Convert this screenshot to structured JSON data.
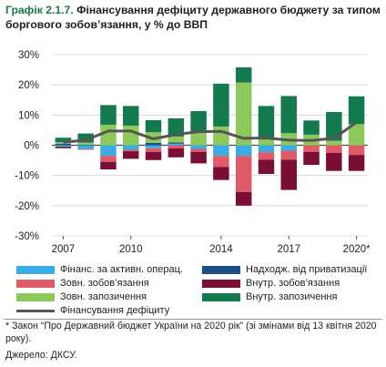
{
  "figure": {
    "prefix": "Графік 2.1.7.",
    "title": "Фінансування дефіциту державного бюджету за типом боргового зобов’язання, у % до ВВП",
    "note": "* Закон “Про Державний бюджет України на 2020 рік” (зі змінами від 13 квітня 2020 року).",
    "source": "Джерело: ДКСУ."
  },
  "colors": {
    "active_ops": "#3aaee4",
    "privatization": "#1c4f86",
    "ext_obligations": "#e05a68",
    "int_obligations": "#7a0f35",
    "ext_borrowing": "#8dc95a",
    "int_borrowing": "#137a4e",
    "deficit_line": "#555555",
    "grid": "#d4d4d4",
    "axis": "#4d4d4d"
  },
  "chart_data": {
    "type": "bar",
    "stacked": true,
    "categories": [
      "2007",
      "2008",
      "2009",
      "2010",
      "2011",
      "2012",
      "2013",
      "2014",
      "2015",
      "2016",
      "2017",
      "2018",
      "2019",
      "2020*"
    ],
    "x_tick_labels": [
      "2007",
      "",
      "",
      "2010",
      "",
      "",
      "",
      "2014",
      "",
      "",
      "2017",
      "",
      "",
      "2020*"
    ],
    "y_ticks": [
      -30,
      -20,
      -10,
      0,
      10,
      20,
      30
    ],
    "y_tick_labels": [
      "-30%",
      "-20%",
      "-10%",
      "0%",
      "10%",
      "20%",
      "30%"
    ],
    "ylim": [
      -30,
      30
    ],
    "grid": true,
    "legend_position": "bottom",
    "series": [
      {
        "name": "Фінанс. за активн. операц.",
        "key": "active_ops",
        "values": [
          -0.5,
          -1.2,
          -3.5,
          -1.5,
          -1.0,
          0.5,
          -1.2,
          -3.5,
          -3.5,
          -2.3,
          -1.8,
          0,
          0,
          0
        ]
      },
      {
        "name": "Надходж. від приватизації",
        "key": "privatization",
        "values": [
          0.5,
          0.2,
          0,
          0,
          0.8,
          0.4,
          0,
          0,
          0,
          0,
          0,
          0,
          0,
          0
        ]
      },
      {
        "name": "Зовн. зобов’язання",
        "key": "ext_obligations",
        "values": [
          0,
          -0.3,
          -2.0,
          -0.5,
          -1.2,
          -1.0,
          -1.0,
          -3.7,
          -12.0,
          -2.5,
          -3.0,
          -2.2,
          -2.5,
          -3.2
        ]
      },
      {
        "name": "Внутр. зобов’язання",
        "key": "int_obligations",
        "values": [
          -0.5,
          0,
          -2.5,
          -2.5,
          -2.7,
          -3.0,
          -3.8,
          -4.3,
          -4.5,
          -4.7,
          -10.0,
          -4.3,
          -6.0,
          -5.3
        ]
      },
      {
        "name": "Зовн. запозичення",
        "key": "ext_borrowing",
        "values": [
          0.5,
          0.7,
          6.8,
          6.5,
          3.5,
          2.0,
          4.3,
          6.2,
          20.8,
          2.5,
          4.0,
          3.5,
          1.5,
          7.0
        ]
      },
      {
        "name": "Внутр. запозичення",
        "key": "int_borrowing",
        "values": [
          1.5,
          3.0,
          6.5,
          6.5,
          4.0,
          6.0,
          7.0,
          14.2,
          5.0,
          10.5,
          12.3,
          4.7,
          9.5,
          9.2
        ]
      }
    ],
    "line": {
      "name": "Фінансування дефіциту",
      "key": "deficit_line",
      "values": [
        1.0,
        1.7,
        4.7,
        4.7,
        2.1,
        3.6,
        4.5,
        4.6,
        2.3,
        2.4,
        1.7,
        1.6,
        2.3,
        7.6
      ]
    }
  }
}
